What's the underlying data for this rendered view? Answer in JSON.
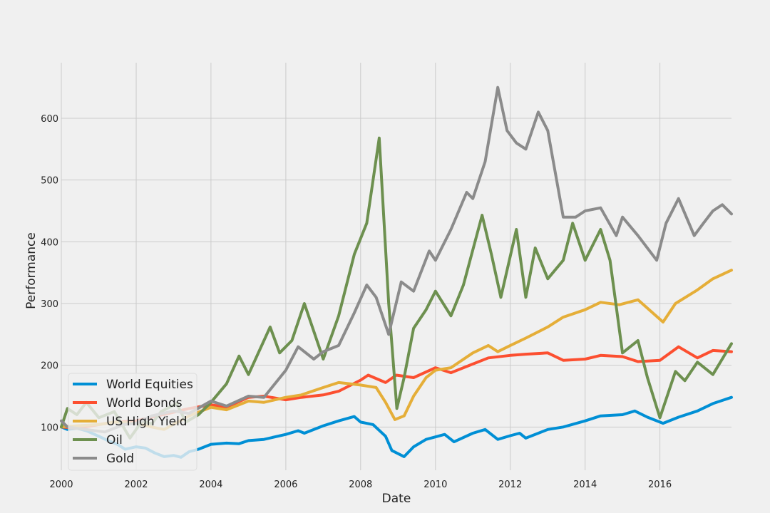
{
  "chart_data": {
    "type": "line",
    "title": "",
    "xlabel": "Date",
    "ylabel": "Performance",
    "xlim": [
      "2000-01-01",
      "2017-11-30"
    ],
    "ylim": [
      30,
      690
    ],
    "x_ticks": [
      "2000",
      "2002",
      "2004",
      "2006",
      "2008",
      "2010",
      "2012",
      "2014",
      "2016"
    ],
    "y_ticks": [
      100,
      200,
      300,
      400,
      500,
      600
    ],
    "grid": true,
    "legend_position": "lower-left",
    "series": [
      {
        "name": "World Equities",
        "color": "#008fd5",
        "points": [
          [
            "2000-01-01",
            100
          ],
          [
            "2000-03-01",
            96
          ],
          [
            "2000-06-01",
            98
          ],
          [
            "2000-09-01",
            94
          ],
          [
            "2001-01-01",
            85
          ],
          [
            "2001-04-01",
            78
          ],
          [
            "2001-07-01",
            72
          ],
          [
            "2001-09-15",
            64
          ],
          [
            "2002-01-01",
            68
          ],
          [
            "2002-04-01",
            66
          ],
          [
            "2002-07-01",
            58
          ],
          [
            "2002-10-01",
            52
          ],
          [
            "2003-01-01",
            54
          ],
          [
            "2003-03-15",
            51
          ],
          [
            "2003-06-01",
            60
          ],
          [
            "2003-09-01",
            64
          ],
          [
            "2004-01-01",
            72
          ],
          [
            "2004-06-01",
            74
          ],
          [
            "2004-10-01",
            73
          ],
          [
            "2005-01-01",
            78
          ],
          [
            "2005-06-01",
            80
          ],
          [
            "2006-01-01",
            88
          ],
          [
            "2006-05-01",
            94
          ],
          [
            "2006-07-01",
            90
          ],
          [
            "2007-01-01",
            102
          ],
          [
            "2007-06-01",
            110
          ],
          [
            "2007-10-31",
            117
          ],
          [
            "2008-01-01",
            108
          ],
          [
            "2008-05-01",
            104
          ],
          [
            "2008-09-01",
            85
          ],
          [
            "2008-11-01",
            62
          ],
          [
            "2009-03-01",
            52
          ],
          [
            "2009-06-01",
            68
          ],
          [
            "2009-10-01",
            80
          ],
          [
            "2010-01-01",
            84
          ],
          [
            "2010-04-01",
            88
          ],
          [
            "2010-07-01",
            76
          ],
          [
            "2011-01-01",
            90
          ],
          [
            "2011-05-01",
            96
          ],
          [
            "2011-09-01",
            80
          ],
          [
            "2012-01-01",
            86
          ],
          [
            "2012-04-01",
            90
          ],
          [
            "2012-06-01",
            82
          ],
          [
            "2013-01-01",
            96
          ],
          [
            "2013-06-01",
            100
          ],
          [
            "2014-01-01",
            110
          ],
          [
            "2014-06-01",
            118
          ],
          [
            "2015-01-01",
            120
          ],
          [
            "2015-05-01",
            126
          ],
          [
            "2015-09-01",
            116
          ],
          [
            "2016-02-01",
            106
          ],
          [
            "2016-07-01",
            116
          ],
          [
            "2017-01-01",
            126
          ],
          [
            "2017-06-01",
            138
          ],
          [
            "2017-11-30",
            148
          ]
        ]
      },
      {
        "name": "World Bonds",
        "color": "#fc4f30",
        "points": [
          [
            "2000-01-01",
            100
          ],
          [
            "2000-06-01",
            98
          ],
          [
            "2001-01-01",
            104
          ],
          [
            "2001-06-01",
            108
          ],
          [
            "2002-01-01",
            110
          ],
          [
            "2002-06-01",
            116
          ],
          [
            "2003-01-01",
            124
          ],
          [
            "2003-06-01",
            130
          ],
          [
            "2004-01-01",
            136
          ],
          [
            "2004-06-01",
            132
          ],
          [
            "2005-01-01",
            148
          ],
          [
            "2005-06-01",
            150
          ],
          [
            "2006-01-01",
            144
          ],
          [
            "2006-06-01",
            148
          ],
          [
            "2007-01-01",
            152
          ],
          [
            "2007-06-01",
            158
          ],
          [
            "2008-01-01",
            176
          ],
          [
            "2008-03-15",
            184
          ],
          [
            "2008-09-01",
            172
          ],
          [
            "2008-12-15",
            184
          ],
          [
            "2009-06-01",
            180
          ],
          [
            "2010-01-01",
            196
          ],
          [
            "2010-06-01",
            188
          ],
          [
            "2011-01-01",
            202
          ],
          [
            "2011-06-01",
            212
          ],
          [
            "2012-01-01",
            216
          ],
          [
            "2012-06-01",
            218
          ],
          [
            "2013-01-01",
            220
          ],
          [
            "2013-06-01",
            208
          ],
          [
            "2014-01-01",
            210
          ],
          [
            "2014-06-01",
            216
          ],
          [
            "2015-01-01",
            214
          ],
          [
            "2015-06-01",
            206
          ],
          [
            "2016-01-01",
            208
          ],
          [
            "2016-07-01",
            230
          ],
          [
            "2017-01-01",
            212
          ],
          [
            "2017-06-01",
            224
          ],
          [
            "2017-11-30",
            222
          ]
        ]
      },
      {
        "name": "US High Yield",
        "color": "#e5ae38",
        "points": [
          [
            "2000-01-01",
            100
          ],
          [
            "2000-06-01",
            102
          ],
          [
            "2001-01-01",
            104
          ],
          [
            "2001-06-01",
            108
          ],
          [
            "2002-01-01",
            106
          ],
          [
            "2002-06-01",
            100
          ],
          [
            "2002-10-01",
            96
          ],
          [
            "2003-06-01",
            118
          ],
          [
            "2004-01-01",
            132
          ],
          [
            "2004-06-01",
            128
          ],
          [
            "2005-01-01",
            142
          ],
          [
            "2005-06-01",
            140
          ],
          [
            "2006-01-01",
            148
          ],
          [
            "2006-06-01",
            152
          ],
          [
            "2007-01-01",
            164
          ],
          [
            "2007-06-01",
            172
          ],
          [
            "2008-01-01",
            168
          ],
          [
            "2008-06-01",
            164
          ],
          [
            "2008-09-01",
            140
          ],
          [
            "2008-12-01",
            112
          ],
          [
            "2009-03-01",
            118
          ],
          [
            "2009-06-01",
            150
          ],
          [
            "2009-10-01",
            180
          ],
          [
            "2010-01-01",
            192
          ],
          [
            "2010-06-01",
            196
          ],
          [
            "2011-01-01",
            220
          ],
          [
            "2011-06-01",
            232
          ],
          [
            "2011-09-01",
            222
          ],
          [
            "2012-01-01",
            232
          ],
          [
            "2012-06-01",
            244
          ],
          [
            "2013-01-01",
            262
          ],
          [
            "2013-06-01",
            278
          ],
          [
            "2014-01-01",
            290
          ],
          [
            "2014-06-01",
            302
          ],
          [
            "2014-12-01",
            298
          ],
          [
            "2015-06-01",
            306
          ],
          [
            "2016-02-01",
            270
          ],
          [
            "2016-06-01",
            300
          ],
          [
            "2017-01-01",
            322
          ],
          [
            "2017-06-01",
            340
          ],
          [
            "2017-11-30",
            354
          ]
        ]
      },
      {
        "name": "Oil",
        "color": "#6d904f",
        "points": [
          [
            "2000-01-01",
            100
          ],
          [
            "2000-03-01",
            130
          ],
          [
            "2000-06-01",
            120
          ],
          [
            "2000-09-01",
            140
          ],
          [
            "2001-01-01",
            115
          ],
          [
            "2001-06-01",
            125
          ],
          [
            "2001-11-01",
            82
          ],
          [
            "2002-03-01",
            110
          ],
          [
            "2002-06-01",
            105
          ],
          [
            "2002-09-01",
            125
          ],
          [
            "2003-02-01",
            138
          ],
          [
            "2003-05-01",
            108
          ],
          [
            "2003-09-01",
            120
          ],
          [
            "2004-01-01",
            140
          ],
          [
            "2004-06-01",
            170
          ],
          [
            "2004-10-01",
            215
          ],
          [
            "2005-01-01",
            185
          ],
          [
            "2005-08-01",
            262
          ],
          [
            "2005-11-01",
            220
          ],
          [
            "2006-03-01",
            240
          ],
          [
            "2006-07-01",
            300
          ],
          [
            "2007-01-01",
            210
          ],
          [
            "2007-06-01",
            280
          ],
          [
            "2007-11-01",
            380
          ],
          [
            "2008-03-01",
            430
          ],
          [
            "2008-07-01",
            568
          ],
          [
            "2008-10-01",
            300
          ],
          [
            "2008-12-20",
            130
          ],
          [
            "2009-03-01",
            180
          ],
          [
            "2009-06-01",
            260
          ],
          [
            "2009-10-01",
            290
          ],
          [
            "2010-01-01",
            320
          ],
          [
            "2010-06-01",
            280
          ],
          [
            "2010-10-01",
            330
          ],
          [
            "2011-04-01",
            443
          ],
          [
            "2011-07-01",
            380
          ],
          [
            "2011-10-01",
            310
          ],
          [
            "2012-03-01",
            420
          ],
          [
            "2012-06-01",
            310
          ],
          [
            "2012-09-01",
            390
          ],
          [
            "2013-01-01",
            340
          ],
          [
            "2013-06-01",
            370
          ],
          [
            "2013-09-01",
            430
          ],
          [
            "2014-01-01",
            370
          ],
          [
            "2014-06-01",
            420
          ],
          [
            "2014-09-01",
            370
          ],
          [
            "2015-01-01",
            220
          ],
          [
            "2015-06-01",
            240
          ],
          [
            "2015-09-01",
            180
          ],
          [
            "2016-01-01",
            115
          ],
          [
            "2016-06-01",
            190
          ],
          [
            "2016-09-01",
            175
          ],
          [
            "2017-01-01",
            205
          ],
          [
            "2017-06-01",
            185
          ],
          [
            "2017-11-30",
            235
          ]
        ]
      },
      {
        "name": "Gold",
        "color": "#8b8b8b",
        "points": [
          [
            "2000-01-01",
            110
          ],
          [
            "2000-03-01",
            100
          ],
          [
            "2000-09-01",
            96
          ],
          [
            "2001-03-01",
            92
          ],
          [
            "2001-09-01",
            104
          ],
          [
            "2002-01-01",
            106
          ],
          [
            "2002-06-01",
            118
          ],
          [
            "2003-01-01",
            126
          ],
          [
            "2003-06-01",
            122
          ],
          [
            "2004-01-01",
            142
          ],
          [
            "2004-06-01",
            134
          ],
          [
            "2005-01-01",
            150
          ],
          [
            "2005-06-01",
            148
          ],
          [
            "2006-01-01",
            192
          ],
          [
            "2006-05-01",
            230
          ],
          [
            "2006-10-01",
            210
          ],
          [
            "2007-01-01",
            222
          ],
          [
            "2007-06-01",
            232
          ],
          [
            "2007-11-01",
            285
          ],
          [
            "2008-03-01",
            330
          ],
          [
            "2008-06-01",
            310
          ],
          [
            "2008-10-01",
            250
          ],
          [
            "2009-02-01",
            335
          ],
          [
            "2009-06-01",
            320
          ],
          [
            "2009-11-01",
            385
          ],
          [
            "2010-01-01",
            370
          ],
          [
            "2010-06-01",
            420
          ],
          [
            "2010-11-01",
            480
          ],
          [
            "2011-01-01",
            470
          ],
          [
            "2011-05-01",
            530
          ],
          [
            "2011-09-01",
            650
          ],
          [
            "2011-12-01",
            580
          ],
          [
            "2012-03-01",
            560
          ],
          [
            "2012-06-01",
            550
          ],
          [
            "2012-10-01",
            610
          ],
          [
            "2013-01-01",
            580
          ],
          [
            "2013-06-01",
            440
          ],
          [
            "2013-10-01",
            440
          ],
          [
            "2014-01-01",
            450
          ],
          [
            "2014-06-01",
            455
          ],
          [
            "2014-11-01",
            410
          ],
          [
            "2015-01-01",
            440
          ],
          [
            "2015-06-01",
            410
          ],
          [
            "2015-12-01",
            370
          ],
          [
            "2016-03-01",
            430
          ],
          [
            "2016-07-01",
            470
          ],
          [
            "2016-12-01",
            410
          ],
          [
            "2017-03-01",
            430
          ],
          [
            "2017-06-01",
            450
          ],
          [
            "2017-09-01",
            460
          ],
          [
            "2017-11-30",
            445
          ]
        ]
      }
    ]
  }
}
